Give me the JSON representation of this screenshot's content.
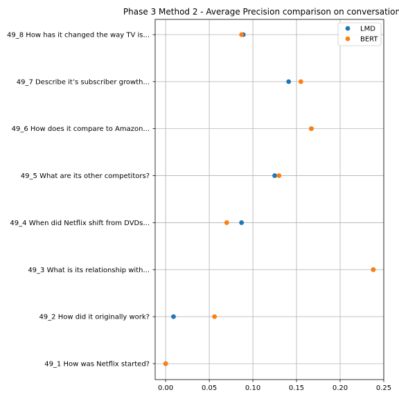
{
  "chart_data": {
    "type": "scatter",
    "title": "Phase 3 Method 2 - Average Precision comparison on conversation",
    "xlabel": "",
    "ylabel": "",
    "xlim": [
      -0.012,
      0.25
    ],
    "x_ticks": [
      0.0,
      0.05,
      0.1,
      0.15,
      0.2,
      0.25
    ],
    "x_tick_labels": [
      "0.00",
      "0.05",
      "0.10",
      "0.15",
      "0.20",
      "0.25"
    ],
    "categories": [
      "49_1 How was Netflix started?",
      "49_2 How did it originally work?",
      "49_3 What is its relationship with...",
      "49_4 When did Netflix shift from DVDs...",
      "49_5 What are its other competitors?",
      "49_6 How does it compare to Amazon...",
      "49_7 Describe it’s subscriber growth...",
      "49_8 How has it changed the way TV is..."
    ],
    "series": [
      {
        "name": "LMD",
        "color": "#1f77b4",
        "values": [
          0.0,
          0.009,
          0.238,
          0.087,
          0.125,
          0.167,
          0.141,
          0.089
        ]
      },
      {
        "name": "BERT",
        "color": "#ff7f0e",
        "values": [
          0.0,
          0.056,
          0.238,
          0.07,
          0.13,
          0.167,
          0.155,
          0.087
        ]
      }
    ],
    "grid": true,
    "legend_position": "top-right"
  }
}
